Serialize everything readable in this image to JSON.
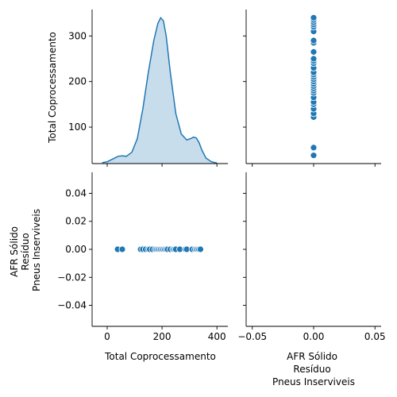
{
  "chart_data": {
    "type": "pairplot",
    "variables": [
      "Total Coprocessamento",
      "AFR Sólido\nResíduo\nPneus Inserviveis"
    ],
    "color": "#1f77b4",
    "diag_kind": "kde",
    "total_coprocessamento": [
      38,
      55,
      122,
      130,
      140,
      150,
      155,
      165,
      175,
      180,
      185,
      190,
      195,
      200,
      205,
      210,
      215,
      220,
      230,
      240,
      245,
      250,
      265,
      285,
      290,
      310,
      320,
      325,
      330,
      335,
      340
    ],
    "afr_solido": [
      0,
      0,
      0,
      0,
      0,
      0,
      0,
      0,
      0,
      0,
      0,
      0,
      0,
      0,
      0,
      0,
      0,
      0,
      0,
      0,
      0,
      0,
      0,
      0,
      0,
      0,
      0,
      0,
      0,
      0,
      0
    ],
    "axes": {
      "total": {
        "lim": [
          -55,
          440
        ],
        "ylim": [
          20,
          358
        ],
        "xticks": [
          "0",
          "200",
          "400"
        ],
        "xtick_values": [
          0,
          200,
          400
        ],
        "yticks": [
          "100",
          "200",
          "300"
        ],
        "ytick_values": [
          100,
          200,
          300
        ]
      },
      "afr": {
        "lim": [
          -0.055,
          0.055
        ],
        "xticks": [
          "−0.05",
          "0.00",
          "0.05"
        ],
        "xtick_values": [
          -0.05,
          0,
          0.05
        ],
        "yticks": [
          "−0.04",
          "−0.02",
          "0.00",
          "0.02",
          "0.04"
        ],
        "ytick_values": [
          -0.04,
          -0.02,
          0,
          0.02,
          0.04
        ]
      }
    },
    "labels": {
      "total": "Total Coprocessamento",
      "afr_lines": [
        "AFR Sólido",
        "Resíduo",
        "Pneus Inserviveis"
      ]
    },
    "kde_curve": {
      "x": [
        -18,
        0,
        20,
        40,
        55,
        70,
        90,
        110,
        130,
        150,
        170,
        185,
        195,
        205,
        215,
        230,
        250,
        270,
        290,
        305,
        315,
        325,
        335,
        345,
        360,
        380,
        400
      ],
      "y": [
        22,
        24,
        30,
        36,
        37,
        36,
        45,
        75,
        140,
        220,
        290,
        328,
        340,
        333,
        300,
        220,
        130,
        85,
        72,
        75,
        78,
        76,
        66,
        50,
        32,
        24,
        21
      ]
    }
  }
}
